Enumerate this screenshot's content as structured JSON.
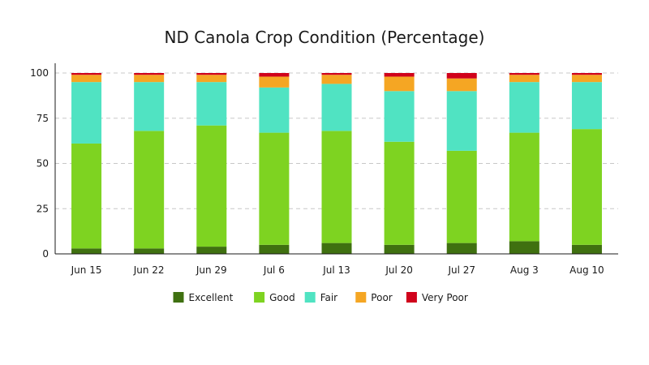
{
  "chart_data": {
    "type": "bar",
    "stacked": true,
    "title": "ND Canola Crop Condition (Percentage)",
    "xlabel": "",
    "ylabel": "",
    "categories": [
      "Jun 15",
      "Jun 22",
      "Jun 29",
      "Jul 6",
      "Jul 13",
      "Jul 20",
      "Jul 27",
      "Aug 3",
      "Aug 10"
    ],
    "series": [
      {
        "name": "Excellent",
        "color": "#3f7010",
        "values": [
          3,
          3,
          4,
          5,
          6,
          5,
          6,
          7,
          5
        ]
      },
      {
        "name": "Good",
        "color": "#7ed321",
        "values": [
          58,
          65,
          67,
          62,
          62,
          57,
          51,
          60,
          64
        ]
      },
      {
        "name": "Fair",
        "color": "#50e3c2",
        "values": [
          34,
          27,
          24,
          25,
          26,
          28,
          33,
          28,
          26
        ]
      },
      {
        "name": "Poor",
        "color": "#f5a623",
        "values": [
          4,
          4,
          4,
          6,
          5,
          8,
          7,
          4,
          4
        ]
      },
      {
        "name": "Very Poor",
        "color": "#d0021b",
        "values": [
          1,
          1,
          1,
          2,
          1,
          2,
          3,
          1,
          1
        ]
      }
    ],
    "ylim": [
      0,
      100
    ],
    "yticks": [
      0,
      25,
      50,
      75,
      100
    ],
    "grid": true,
    "legend": "bottom"
  }
}
